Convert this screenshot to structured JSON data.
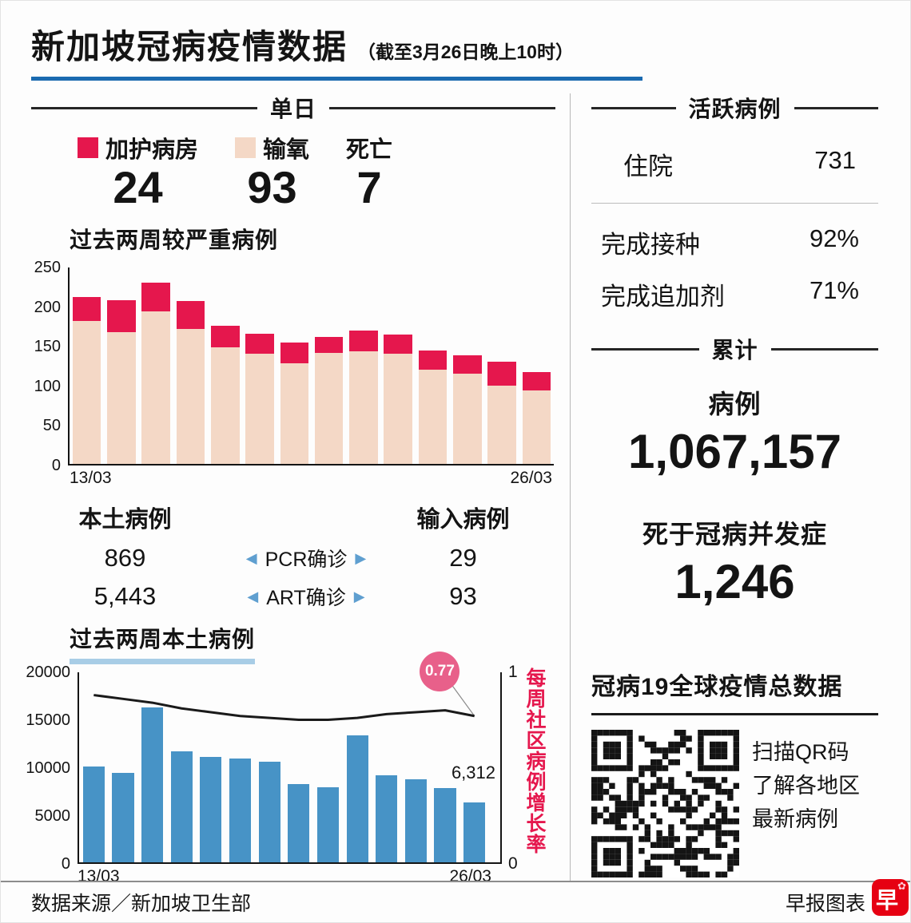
{
  "colors": {
    "red": "#e5174d",
    "pink": "#f4d8c6",
    "blue_bar": "#4793c6",
    "light_blue_underline": "#a8cde6",
    "arrow_blue": "#5f9fd0",
    "title_rule_blue": "#1a6ab0",
    "badge_pink": "#e8608a",
    "logo_red": "#e60012"
  },
  "header": {
    "title": "新加坡冠病疫情数据",
    "subtitle": "（截至3月26日晚上10时）"
  },
  "daily": {
    "section_title": "单日",
    "stats": [
      {
        "label": "加护病房",
        "value": "24"
      },
      {
        "label": "输氧",
        "value": "93"
      },
      {
        "label": "死亡",
        "value": "7"
      }
    ]
  },
  "cases_table": {
    "local_header": "本土病例",
    "imported_header": "输入病例",
    "rows": [
      {
        "local": "869",
        "mid": "PCR确诊",
        "imported": "29"
      },
      {
        "local": "5,443",
        "mid": "ART确诊",
        "imported": "93"
      }
    ]
  },
  "icons": {
    "arrow_left": "◀",
    "arrow_right": "▶",
    "flower": "✿"
  },
  "active": {
    "section_title": "活跃病例",
    "hospitalized_label": "住院",
    "hospitalized_value": "731",
    "vaccinated_label": "完成接种",
    "vaccinated_value": "92%",
    "booster_label": "完成追加剂",
    "booster_value": "71%"
  },
  "cumulative": {
    "section_title": "累计",
    "cases_label": "病例",
    "cases_value": "1,067,157",
    "deaths_label": "死于冠病并发症",
    "deaths_value": "1,246"
  },
  "global": {
    "title": "冠病19全球疫情总数据",
    "caption_lines": [
      "扫描QR码",
      "了解各地区",
      "最新病例"
    ]
  },
  "footer": {
    "source": "数据来源／新加坡卫生部",
    "credit": "早报图表",
    "logo_char": "早"
  },
  "chart_data": [
    {
      "type": "bar",
      "stacked": true,
      "title": "过去两周较严重病例",
      "x_start_label": "13/03",
      "x_end_label": "26/03",
      "ylim": [
        0,
        250
      ],
      "yticks": [
        0,
        50,
        100,
        150,
        200,
        250
      ],
      "grid": false,
      "legend_position": "above-as-daily-stats",
      "series": [
        {
          "name": "输氧",
          "color": "#f4d8c6",
          "values": [
            182,
            168,
            194,
            172,
            148,
            140,
            128,
            141,
            143,
            140,
            120,
            115,
            100,
            93
          ]
        },
        {
          "name": "加护病房",
          "color": "#e5174d",
          "values": [
            30,
            40,
            37,
            35,
            28,
            26,
            26,
            21,
            27,
            25,
            24,
            23,
            30,
            24
          ]
        }
      ]
    },
    {
      "type": "bar+line",
      "title": "过去两周本土病例",
      "x_start_label": "13/03",
      "x_end_label": "26/03",
      "ylim_left": [
        0,
        20000
      ],
      "yticks_left": [
        0,
        5000,
        10000,
        15000,
        20000
      ],
      "ylim_right": [
        0,
        1
      ],
      "yticks_right": [
        0,
        1
      ],
      "right_axis_label": "每周社区病例增长率",
      "bars": {
        "name": "本土病例",
        "color": "#4793c6",
        "values": [
          10100,
          9400,
          16300,
          11700,
          11100,
          10900,
          10600,
          8200,
          7900,
          13400,
          9200,
          8700,
          7800,
          6312
        ]
      },
      "line": {
        "name": "每周社区病例增长率",
        "color": "#1a1a1a",
        "values": [
          0.88,
          0.86,
          0.84,
          0.81,
          0.79,
          0.77,
          0.76,
          0.75,
          0.75,
          0.76,
          0.78,
          0.79,
          0.8,
          0.77
        ]
      },
      "last_bar_label": "6,312",
      "line_end_label": "0.77"
    }
  ]
}
